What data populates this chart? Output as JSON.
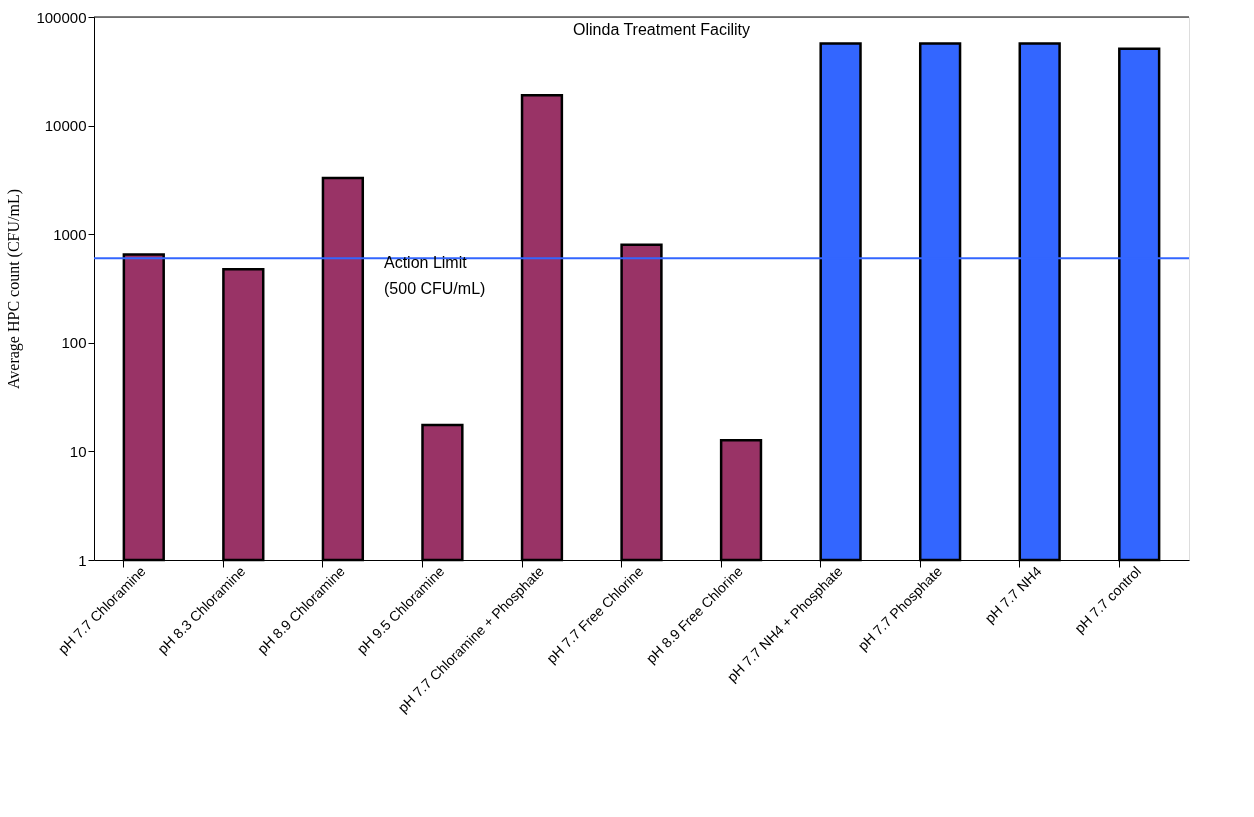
{
  "chart_data": {
    "type": "bar",
    "title": "Olinda Treatment Facility",
    "ylabel": "Average HPC count  (CFU/mL)",
    "categories": [
      "pH 7.7 Chloramine",
      "pH 8.3 Chloramine",
      "pH 8.9 Chloramine",
      "pH 9.5 Chloramine",
      "pH 7.7 Chloramine + Phosphate",
      "pH 7.7 Free Chlorine",
      "pH 8.9 Free Chlorine",
      "pH 7.7 NH4 + Phosphate",
      "pH 7.7 Phosphate",
      "pH 7.7 NH4",
      "pH 7.7 control"
    ],
    "values": [
      650,
      475,
      3300,
      17.5,
      19000,
      800,
      12.7,
      57000,
      57000,
      57000,
      51000
    ],
    "colors": [
      "#993366",
      "#993366",
      "#993366",
      "#993366",
      "#993366",
      "#993366",
      "#993366",
      "#3366ff",
      "#3366ff",
      "#3366ff",
      "#3366ff"
    ],
    "log": "y",
    "ylim": [
      1,
      100000
    ],
    "yticks": [
      1,
      10,
      100,
      1000,
      10000,
      100000
    ],
    "grid": false,
    "ref_lines": [
      {
        "axis": "y",
        "value": 600,
        "label": "Action Limit\n(500 CFU/mL)",
        "color": "#3366ff",
        "line_style": "solid"
      }
    ]
  }
}
